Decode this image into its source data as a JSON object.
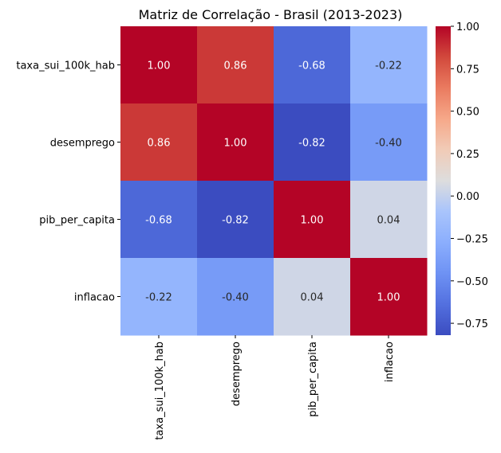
{
  "chart_data": {
    "type": "heatmap",
    "title": "Matriz de Correlação - Brasil (2013-2023)",
    "rows": [
      "taxa_sui_100k_hab",
      "desemprego",
      "pib_per_capita",
      "inflacao"
    ],
    "columns": [
      "taxa_sui_100k_hab",
      "desemprego",
      "pib_per_capita",
      "inflacao"
    ],
    "values": [
      [
        1.0,
        0.86,
        -0.68,
        -0.22
      ],
      [
        0.86,
        1.0,
        -0.82,
        -0.4
      ],
      [
        -0.68,
        -0.82,
        1.0,
        0.04
      ],
      [
        -0.22,
        -0.4,
        0.04,
        1.0
      ]
    ],
    "cell_labels": [
      [
        "1.00",
        "0.86",
        "-0.68",
        "-0.22"
      ],
      [
        "0.86",
        "1.00",
        "-0.82",
        "-0.40"
      ],
      [
        "-0.68",
        "-0.82",
        "1.00",
        "0.04"
      ],
      [
        "-0.22",
        "-0.40",
        "0.04",
        "1.00"
      ]
    ],
    "colormap": "coolwarm",
    "color_range": [
      -0.82,
      1.0
    ],
    "colorbar_ticks": [
      "1.00",
      "0.75",
      "0.50",
      "0.25",
      "0.00",
      "−0.25",
      "−0.50",
      "−0.75"
    ],
    "colorbar_tick_values": [
      1.0,
      0.75,
      0.5,
      0.25,
      0.0,
      -0.25,
      -0.5,
      -0.75
    ],
    "colorbar_placement": "right",
    "grid": false
  }
}
